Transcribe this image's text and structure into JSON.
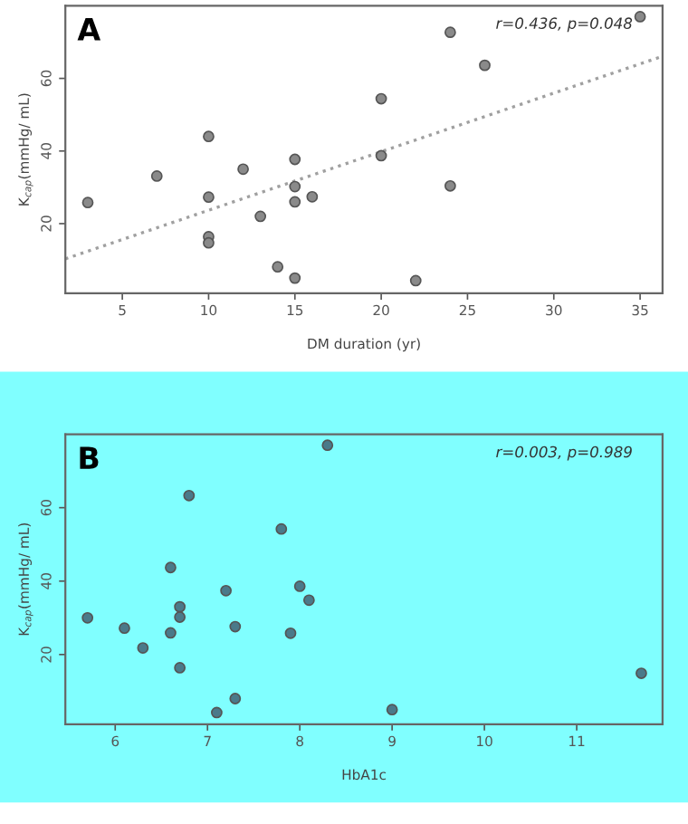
{
  "chart_data": [
    {
      "type": "scatter",
      "title": "A",
      "xlabel": "DM duration (yr)",
      "ylabel": "K$_{cap}$(mmHg/ mL)",
      "annotations": [
        "r=0.436, p=0.048"
      ],
      "grid": false,
      "legend": false,
      "xlim": [
        1.7,
        36.3
      ],
      "ylim": [
        0.8,
        80
      ],
      "xticks": [
        5,
        10,
        15,
        20,
        25,
        30,
        35
      ],
      "yticks": [
        20,
        40,
        60
      ],
      "series": [
        {
          "marker": "circle",
          "color": "#8a8a8a",
          "x": [
            3,
            7,
            10,
            10,
            10,
            10,
            12,
            13,
            14,
            15,
            15,
            15,
            15,
            16,
            20,
            20,
            22,
            24,
            24,
            26,
            35
          ],
          "values": [
            25.8,
            33.1,
            44.0,
            27.3,
            16.4,
            14.7,
            35.0,
            22.0,
            8.1,
            37.7,
            30.2,
            26.0,
            5.0,
            27.4,
            54.4,
            38.7,
            4.3,
            72.7,
            30.4,
            63.6,
            77.0
          ]
        },
        {
          "type": "line",
          "color": "#a0a0a0",
          "line_style": "dotted",
          "x": [
            1.7,
            36.3
          ],
          "values": [
            10.3,
            66.1
          ]
        }
      ]
    },
    {
      "type": "scatter",
      "title": "B",
      "xlabel": "HbA1c",
      "ylabel": "K$_{cap}$(mmHg/ mL)",
      "annotations": [
        "r=0.003, p=0.989"
      ],
      "grid": false,
      "legend": false,
      "xlim": [
        5.46,
        11.93
      ],
      "ylim": [
        1,
        80
      ],
      "xticks": [
        6,
        7,
        8,
        9,
        10,
        11
      ],
      "yticks": [
        20,
        40,
        60
      ],
      "series": [
        {
          "marker": "circle",
          "color": "#4a7a8a",
          "x": [
            5.7,
            6.1,
            6.3,
            6.6,
            6.6,
            6.7,
            6.7,
            6.7,
            6.8,
            7.1,
            7.2,
            7.3,
            7.3,
            7.8,
            7.9,
            8.0,
            8.1,
            8.3,
            9.0,
            11.7
          ],
          "values": [
            30.0,
            27.2,
            21.8,
            43.7,
            25.9,
            33.0,
            30.2,
            16.4,
            63.3,
            4.2,
            37.4,
            27.6,
            8.0,
            54.2,
            25.8,
            38.6,
            34.8,
            77.0,
            5.0,
            14.9
          ]
        }
      ]
    }
  ]
}
